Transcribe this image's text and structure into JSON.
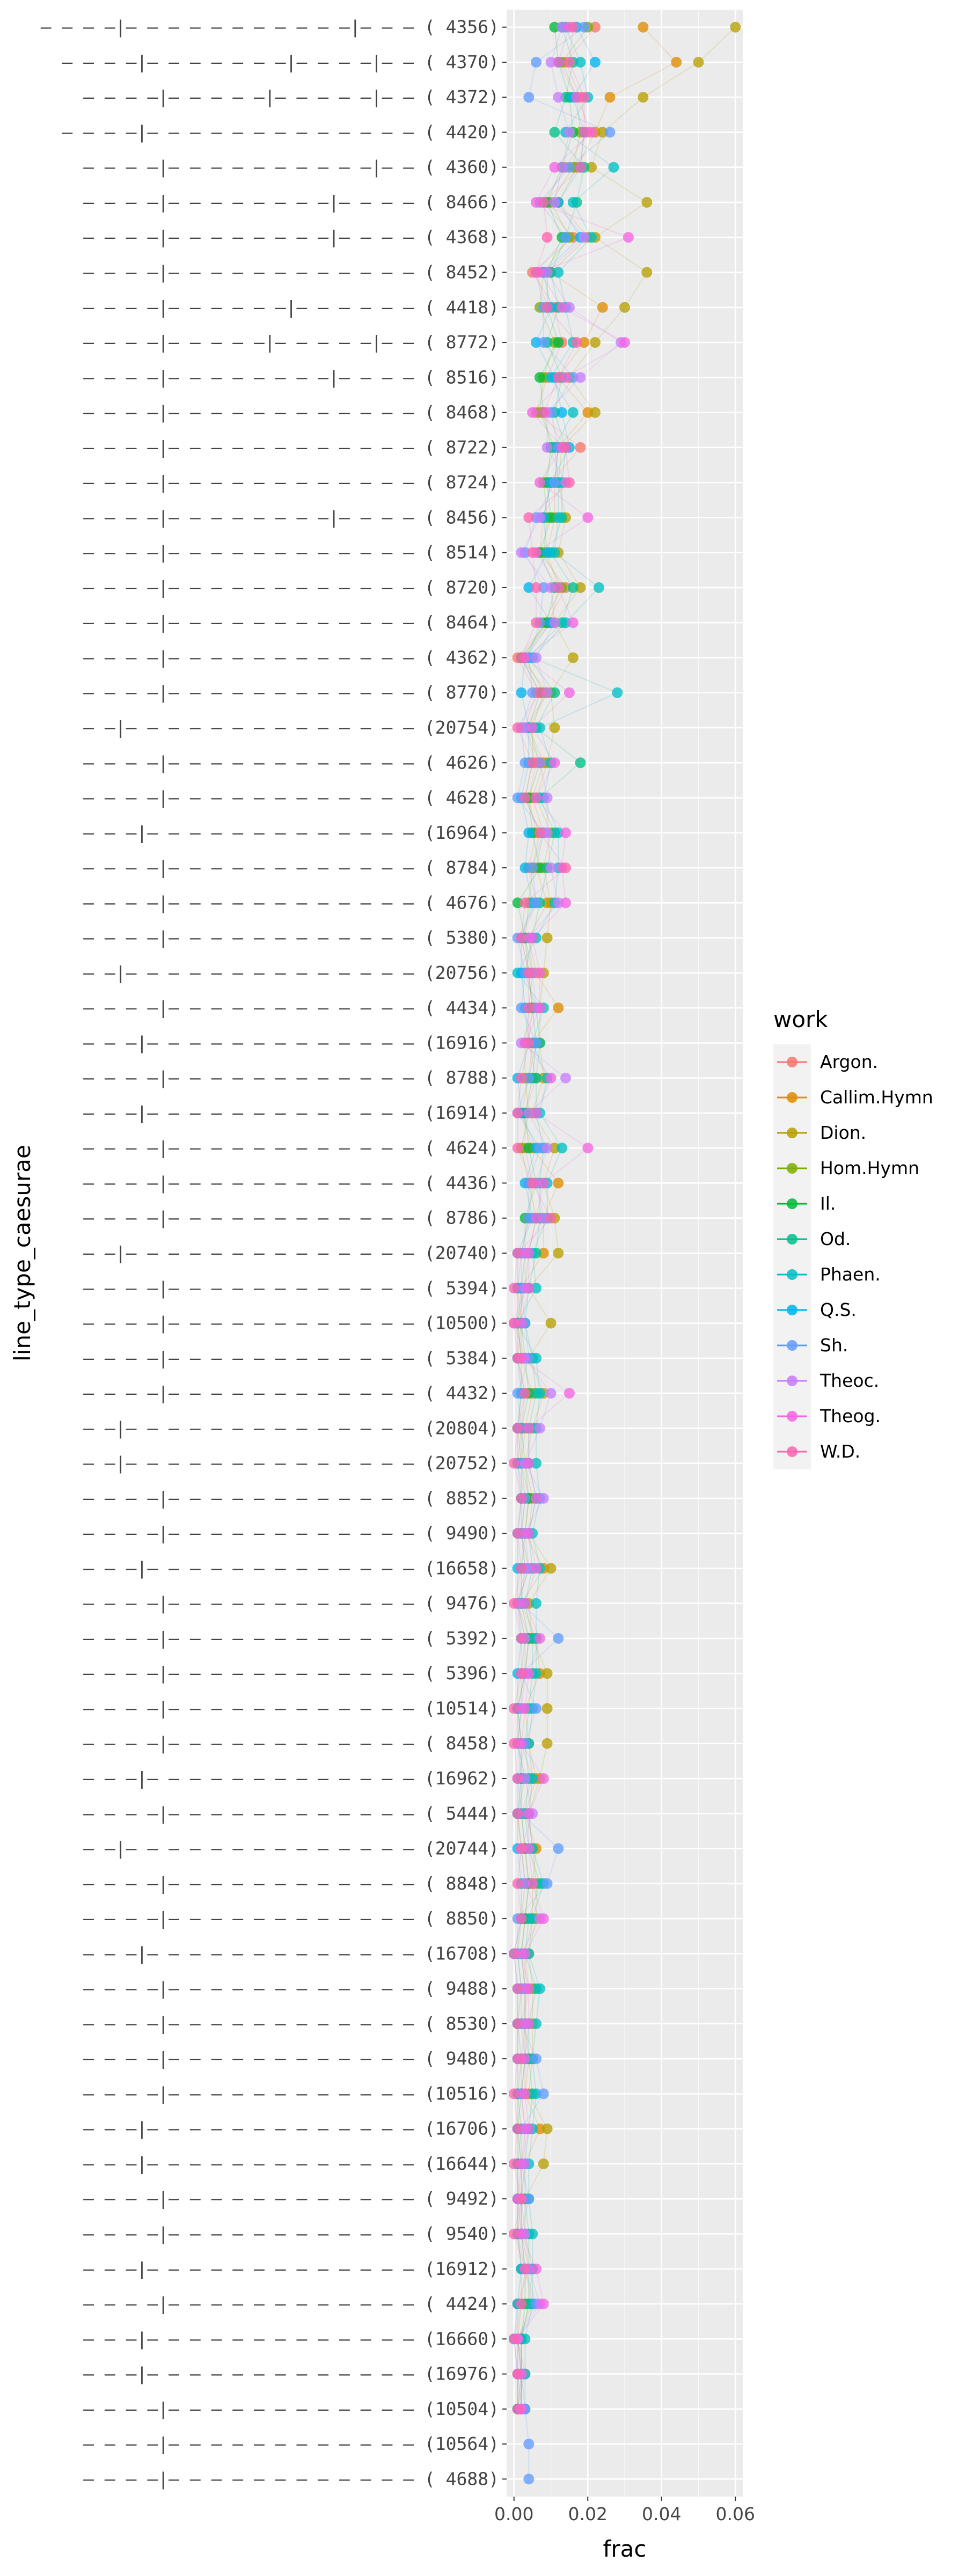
{
  "chart_data": {
    "type": "scatter",
    "xlabel": "frac",
    "ylabel": "line_type_caesurae",
    "xlim": [
      -0.002,
      0.062
    ],
    "xticks": [
      0.0,
      0.02,
      0.04,
      0.06
    ],
    "xtick_labels": [
      "0.00",
      "0.02",
      "0.04",
      "0.06"
    ],
    "grid": true,
    "legend": {
      "title": "work",
      "placement": "right",
      "entries": [
        {
          "name": "Argon.",
          "color": "#F8766D"
        },
        {
          "name": "Callim.Hymn",
          "color": "#DE8C00"
        },
        {
          "name": "Dion.",
          "color": "#B79F00"
        },
        {
          "name": "Hom.Hymn",
          "color": "#7CAE00"
        },
        {
          "name": "Il.",
          "color": "#00BA38"
        },
        {
          "name": "Od.",
          "color": "#00C08B"
        },
        {
          "name": "Phaen.",
          "color": "#00BFC4"
        },
        {
          "name": "Q.S.",
          "color": "#00B4F0"
        },
        {
          "name": "Sh.",
          "color": "#619CFF"
        },
        {
          "name": "Theoc.",
          "color": "#C77CFF"
        },
        {
          "name": "Theog.",
          "color": "#F564E3"
        },
        {
          "name": "W.D.",
          "color": "#FF64B0"
        }
      ]
    },
    "categories": [
      "– – – –|– – – – – – – – – – –|– – – ( 4356)",
      "– – – –|– – – – – – –|– – – –|– – ( 4370)",
      "– – – –|– – – – –|– – – – –|– – ( 4372)",
      "– – – –|– – – – – – – – – – – – – ( 4420)",
      "– – – –|– – – – – – – – – –|– – ( 4360)",
      "– – – –|– – – – – – – –|– – – – ( 8466)",
      "– – – –|– – – – – – – –|– – – – ( 4368)",
      "– – – –|– – – – – – – – – – – – ( 8452)",
      "– – – –|– – – – – –|– – – – – – ( 4418)",
      "– – – –|– – – – –|– – – – –|– – ( 8772)",
      "– – – –|– – – – – – – –|– – – – ( 8516)",
      "– – – –|– – – – – – – – – – – – ( 8468)",
      "– – – –|– – – – – – – – – – – – ( 8722)",
      "– – – –|– – – – – – – – – – – – ( 8724)",
      "– – – –|– – – – – – – –|– – – – ( 8456)",
      "– – – –|– – – – – – – – – – – – ( 8514)",
      "– – – –|– – – – – – – – – – – – ( 8720)",
      "– – – –|– – – – – – – – – – – – ( 8464)",
      "– – – –|– – – – – – – – – – – – ( 4362)",
      "– – – –|– – – – – – – – – – – – ( 8770)",
      "– –|– – – – – – – – – – – – – – (20754)",
      "– – – –|– – – – – – – – – – – – ( 4626)",
      "– – – –|– – – – – – – – – – – – ( 4628)",
      "– – –|– – – – – – – – – – – – – (16964)",
      "– – – –|– – – – – – – – – – – – ( 8784)",
      "– – – –|– – – – – – – – – – – – ( 4676)",
      "– – – –|– – – – – – – – – – – – ( 5380)",
      "– –|– – – – – – – – – – – – – – (20756)",
      "– – – –|– – – – – – – – – – – – ( 4434)",
      "– – –|– – – – – – – – – – – – – (16916)",
      "– – – –|– – – – – – – – – – – – ( 8788)",
      "– – –|– – – – – – – – – – – – – (16914)",
      "– – – –|– – – – – – – – – – – – ( 4624)",
      "– – – –|– – – – – – – – – – – – ( 4436)",
      "– – – –|– – – – – – – – – – – – ( 8786)",
      "– –|– – – – – – – – – – – – – – (20740)",
      "– – – –|– – – – – – – – – – – – ( 5394)",
      "– – – –|– – – – – – – – – – – – (10500)",
      "– – – –|– – – – – – – – – – – – ( 5384)",
      "– – – –|– – – – – – – – – – – – ( 4432)",
      "– –|– – – – – – – – – – – – – – (20804)",
      "– –|– – – – – – – – – – – – – – (20752)",
      "– – – –|– – – – – – – – – – – – ( 8852)",
      "– – – –|– – – – – – – – – – – – ( 9490)",
      "– – –|– – – – – – – – – – – – – (16658)",
      "– – – –|– – – – – – – – – – – – ( 9476)",
      "– – – –|– – – – – – – – – – – – ( 5392)",
      "– – – –|– – – – – – – – – – – – ( 5396)",
      "– – – –|– – – – – – – – – – – – (10514)",
      "– – – –|– – – – – – – – – – – – ( 8458)",
      "– – –|– – – – – – – – – – – – – (16962)",
      "– – – –|– – – – – – – – – – – – ( 5444)",
      "– –|– – – – – – – – – – – – – – (20744)",
      "– – – –|– – – – – – – – – – – – ( 8848)",
      "– – – –|– – – – – – – – – – – – ( 8850)",
      "– – –|– – – – – – – – – – – – – (16708)",
      "– – – –|– – – – – – – – – – – – ( 9488)",
      "– – – –|– – – – – – – – – – – – ( 8530)",
      "– – – –|– – – – – – – – – – – – ( 9480)",
      "– – – –|– – – – – – – – – – – – (10516)",
      "– – –|– – – – – – – – – – – – – (16706)",
      "– – –|– – – – – – – – – – – – – (16644)",
      "– – – –|– – – – – – – – – – – – ( 9492)",
      "– – – –|– – – – – – – – – – – – ( 9540)",
      "– – –|– – – – – – – – – – – – – (16912)",
      "– – – –|– – – – – – – – – – – – ( 4424)",
      "– – –|– – – – – – – – – – – – – (16660)",
      "– – –|– – – – – – – – – – – – – (16976)",
      "– – – –|– – – – – – – – – – – – (10504)",
      "– – – –|– – – – – – – – – – – – (10564)",
      "– – – –|– – – – – – – – – – – – ( 4688)"
    ],
    "values": [
      [
        0.022,
        0.035,
        0.06,
        0.02,
        0.011,
        0.013,
        0.014,
        0.017,
        0.019,
        0.013,
        0.015,
        0.016
      ],
      [
        0.014,
        0.044,
        0.05,
        0.013,
        0.012,
        0.016,
        0.018,
        0.022,
        0.006,
        0.01,
        0.012,
        0.015
      ],
      [
        0.018,
        0.026,
        0.035,
        0.017,
        0.015,
        0.014,
        0.02,
        0.016,
        0.004,
        0.012,
        0.017,
        0.019
      ],
      [
        0.02,
        0.022,
        0.024,
        0.018,
        0.016,
        0.011,
        0.014,
        0.019,
        0.026,
        0.015,
        0.021,
        0.019
      ],
      [
        0.014,
        0.017,
        0.021,
        0.016,
        0.013,
        0.019,
        0.027,
        0.018,
        0.015,
        0.013,
        0.011,
        0.018
      ],
      [
        0.008,
        0.012,
        0.036,
        0.01,
        0.009,
        0.017,
        0.016,
        0.012,
        0.007,
        0.011,
        0.006,
        0.008
      ],
      [
        0.016,
        0.02,
        0.022,
        0.015,
        0.013,
        0.014,
        0.021,
        0.018,
        0.014,
        0.019,
        0.031,
        0.009
      ],
      [
        0.005,
        0.01,
        0.036,
        0.008,
        0.009,
        0.01,
        0.012,
        0.008,
        0.006,
        0.009,
        0.007,
        0.006
      ],
      [
        0.011,
        0.024,
        0.03,
        0.007,
        0.009,
        0.012,
        0.014,
        0.01,
        0.008,
        0.015,
        0.013,
        0.009
      ],
      [
        0.013,
        0.019,
        0.022,
        0.011,
        0.012,
        0.009,
        0.016,
        0.006,
        0.008,
        0.029,
        0.03,
        0.017
      ],
      [
        0.009,
        0.012,
        0.015,
        0.008,
        0.007,
        0.013,
        0.01,
        0.011,
        0.016,
        0.018,
        0.014,
        0.012
      ],
      [
        0.006,
        0.02,
        0.022,
        0.007,
        0.008,
        0.011,
        0.016,
        0.013,
        0.01,
        0.009,
        0.005,
        0.008
      ],
      [
        0.018,
        0.012,
        0.013,
        0.011,
        0.01,
        0.014,
        0.011,
        0.015,
        0.012,
        0.009,
        0.013,
        0.014
      ],
      [
        0.01,
        0.011,
        0.012,
        0.008,
        0.009,
        0.013,
        0.012,
        0.01,
        0.011,
        0.014,
        0.007,
        0.015
      ],
      [
        0.008,
        0.011,
        0.014,
        0.009,
        0.01,
        0.013,
        0.012,
        0.008,
        0.006,
        0.007,
        0.02,
        0.004
      ],
      [
        0.007,
        0.009,
        0.012,
        0.008,
        0.007,
        0.01,
        0.011,
        0.009,
        0.003,
        0.002,
        0.006,
        0.005
      ],
      [
        0.014,
        0.012,
        0.018,
        0.013,
        0.011,
        0.016,
        0.023,
        0.004,
        0.008,
        0.01,
        0.012,
        0.006
      ],
      [
        0.009,
        0.01,
        0.011,
        0.008,
        0.009,
        0.013,
        0.014,
        0.01,
        0.007,
        0.011,
        0.016,
        0.006
      ],
      [
        0.001,
        0.002,
        0.016,
        0.003,
        0.002,
        0.004,
        0.005,
        0.003,
        0.004,
        0.006,
        0.003,
        0.002
      ],
      [
        0.006,
        0.009,
        0.01,
        0.008,
        0.007,
        0.011,
        0.028,
        0.002,
        0.005,
        0.009,
        0.015,
        0.007
      ],
      [
        0.003,
        0.004,
        0.011,
        0.005,
        0.004,
        0.006,
        0.007,
        0.004,
        0.002,
        0.003,
        0.005,
        0.001
      ],
      [
        0.006,
        0.008,
        0.009,
        0.005,
        0.007,
        0.018,
        0.01,
        0.004,
        0.003,
        0.007,
        0.011,
        0.005
      ],
      [
        0.004,
        0.005,
        0.006,
        0.003,
        0.004,
        0.007,
        0.008,
        0.002,
        0.001,
        0.009,
        0.006,
        0.003
      ],
      [
        0.006,
        0.008,
        0.01,
        0.007,
        0.005,
        0.011,
        0.012,
        0.004,
        0.008,
        0.009,
        0.014,
        0.007
      ],
      [
        0.004,
        0.006,
        0.008,
        0.005,
        0.007,
        0.009,
        0.012,
        0.003,
        0.005,
        0.01,
        0.013,
        0.014
      ],
      [
        0.006,
        0.009,
        0.01,
        0.004,
        0.001,
        0.007,
        0.011,
        0.005,
        0.006,
        0.012,
        0.014,
        0.003
      ],
      [
        0.002,
        0.004,
        0.009,
        0.003,
        0.003,
        0.005,
        0.006,
        0.002,
        0.001,
        0.004,
        0.005,
        0.002
      ],
      [
        0.004,
        0.006,
        0.008,
        0.005,
        0.004,
        0.003,
        0.001,
        0.002,
        0.003,
        0.005,
        0.007,
        0.004
      ],
      [
        0.005,
        0.012,
        0.007,
        0.004,
        0.005,
        0.006,
        0.008,
        0.003,
        0.002,
        0.006,
        0.007,
        0.004
      ],
      [
        0.004,
        0.005,
        0.007,
        0.003,
        0.006,
        0.007,
        0.005,
        0.004,
        0.006,
        0.002,
        0.003,
        0.004
      ],
      [
        0.006,
        0.004,
        0.008,
        0.003,
        0.005,
        0.006,
        0.009,
        0.001,
        0.004,
        0.014,
        0.01,
        0.002
      ],
      [
        0.003,
        0.002,
        0.005,
        0.004,
        0.003,
        0.006,
        0.007,
        0.002,
        0.001,
        0.004,
        0.006,
        0.001
      ],
      [
        0.003,
        0.005,
        0.011,
        0.002,
        0.004,
        0.008,
        0.013,
        0.006,
        0.007,
        0.009,
        0.02,
        0.001
      ],
      [
        0.005,
        0.012,
        0.008,
        0.004,
        0.006,
        0.007,
        0.009,
        0.003,
        0.004,
        0.006,
        0.008,
        0.005
      ],
      [
        0.004,
        0.008,
        0.011,
        0.006,
        0.003,
        0.007,
        0.009,
        0.005,
        0.004,
        0.008,
        0.006,
        0.01
      ],
      [
        0.002,
        0.008,
        0.012,
        0.004,
        0.003,
        0.006,
        0.005,
        0.001,
        0.002,
        0.003,
        0.004,
        0.001
      ],
      [
        0.001,
        0.002,
        0.004,
        0.003,
        0.002,
        0.004,
        0.006,
        0.001,
        0.002,
        0.003,
        0.004,
        0.0
      ],
      [
        0.002,
        0.001,
        0.01,
        0.001,
        0.002,
        0.003,
        0.001,
        0.001,
        0.003,
        0.0,
        0.002,
        0.0
      ],
      [
        0.001,
        0.002,
        0.004,
        0.002,
        0.003,
        0.005,
        0.006,
        0.001,
        0.004,
        0.003,
        0.002,
        0.001
      ],
      [
        0.003,
        0.005,
        0.008,
        0.002,
        0.004,
        0.006,
        0.007,
        0.002,
        0.001,
        0.01,
        0.015,
        0.003
      ],
      [
        0.002,
        0.003,
        0.005,
        0.001,
        0.002,
        0.004,
        0.006,
        0.001,
        0.002,
        0.007,
        0.004,
        0.001
      ],
      [
        0.001,
        0.002,
        0.003,
        0.002,
        0.003,
        0.004,
        0.006,
        0.001,
        0.002,
        0.003,
        0.004,
        0.0
      ],
      [
        0.003,
        0.004,
        0.005,
        0.002,
        0.004,
        0.006,
        0.007,
        0.002,
        0.003,
        0.008,
        0.006,
        0.002
      ],
      [
        0.002,
        0.003,
        0.004,
        0.002,
        0.003,
        0.004,
        0.005,
        0.001,
        0.002,
        0.003,
        0.004,
        0.001
      ],
      [
        0.003,
        0.008,
        0.01,
        0.004,
        0.002,
        0.005,
        0.007,
        0.001,
        0.003,
        0.004,
        0.006,
        0.002
      ],
      [
        0.001,
        0.002,
        0.004,
        0.001,
        0.002,
        0.003,
        0.006,
        0.001,
        0.002,
        0.001,
        0.003,
        0.0
      ],
      [
        0.004,
        0.006,
        0.005,
        0.003,
        0.004,
        0.005,
        0.006,
        0.002,
        0.012,
        0.003,
        0.007,
        0.002
      ],
      [
        0.003,
        0.007,
        0.009,
        0.002,
        0.003,
        0.005,
        0.006,
        0.001,
        0.002,
        0.003,
        0.004,
        0.002
      ],
      [
        0.001,
        0.003,
        0.009,
        0.002,
        0.001,
        0.004,
        0.005,
        0.001,
        0.006,
        0.002,
        0.003,
        0.0
      ],
      [
        0.002,
        0.004,
        0.009,
        0.001,
        0.002,
        0.003,
        0.004,
        0.001,
        0.003,
        0.001,
        0.002,
        0.0
      ],
      [
        0.005,
        0.006,
        0.007,
        0.003,
        0.002,
        0.004,
        0.005,
        0.002,
        0.001,
        0.003,
        0.008,
        0.001
      ],
      [
        0.002,
        0.003,
        0.004,
        0.001,
        0.002,
        0.003,
        0.004,
        0.001,
        0.002,
        0.005,
        0.004,
        0.001
      ],
      [
        0.003,
        0.006,
        0.005,
        0.002,
        0.003,
        0.004,
        0.005,
        0.001,
        0.012,
        0.002,
        0.004,
        0.002
      ],
      [
        0.004,
        0.005,
        0.006,
        0.003,
        0.004,
        0.007,
        0.008,
        0.002,
        0.009,
        0.003,
        0.005,
        0.001
      ],
      [
        0.003,
        0.005,
        0.006,
        0.002,
        0.003,
        0.004,
        0.005,
        0.002,
        0.001,
        0.007,
        0.008,
        0.002
      ],
      [
        0.002,
        0.003,
        0.004,
        0.001,
        0.002,
        0.003,
        0.004,
        0.0,
        0.001,
        0.002,
        0.003,
        0.0
      ],
      [
        0.004,
        0.003,
        0.005,
        0.002,
        0.003,
        0.006,
        0.007,
        0.001,
        0.002,
        0.003,
        0.004,
        0.001
      ],
      [
        0.002,
        0.003,
        0.005,
        0.001,
        0.003,
        0.004,
        0.006,
        0.001,
        0.002,
        0.003,
        0.004,
        0.001
      ],
      [
        0.003,
        0.004,
        0.005,
        0.002,
        0.003,
        0.004,
        0.005,
        0.001,
        0.006,
        0.002,
        0.003,
        0.001
      ],
      [
        0.002,
        0.003,
        0.004,
        0.001,
        0.002,
        0.005,
        0.006,
        0.001,
        0.008,
        0.002,
        0.003,
        0.0
      ],
      [
        0.003,
        0.007,
        0.009,
        0.002,
        0.001,
        0.004,
        0.005,
        0.001,
        0.002,
        0.003,
        0.004,
        0.001
      ],
      [
        0.002,
        0.003,
        0.008,
        0.001,
        0.002,
        0.003,
        0.004,
        0.001,
        0.002,
        0.003,
        0.002,
        0.0
      ],
      [
        0.002,
        0.002,
        0.003,
        0.001,
        0.002,
        0.003,
        0.004,
        0.001,
        0.004,
        0.002,
        0.001,
        0.002
      ],
      [
        0.001,
        0.002,
        0.003,
        0.001,
        0.002,
        0.004,
        0.005,
        0.001,
        0.002,
        0.003,
        0.002,
        0.0
      ],
      [
        0.003,
        0.004,
        0.005,
        0.002,
        0.003,
        0.004,
        0.005,
        0.002,
        0.003,
        0.004,
        0.006,
        0.003
      ],
      [
        0.005,
        0.001,
        0.004,
        0.002,
        0.003,
        0.004,
        0.005,
        0.001,
        0.006,
        0.007,
        0.008,
        0.002
      ],
      [
        0.001,
        0.001,
        0.002,
        0.001,
        0.002,
        0.002,
        0.003,
        0.0,
        0.001,
        0.001,
        0.001,
        0.0
      ],
      [
        0.003,
        0.002,
        0.002,
        0.001,
        0.002,
        0.002,
        0.003,
        0.001,
        0.002,
        0.001,
        0.002,
        0.001
      ],
      [
        0.001,
        0.002,
        0.002,
        0.001,
        0.001,
        0.002,
        0.003,
        0.001,
        0.003,
        0.002,
        0.002,
        0.001
      ],
      [
        null,
        null,
        null,
        null,
        null,
        null,
        null,
        null,
        0.004,
        null,
        null,
        null
      ],
      [
        null,
        null,
        null,
        null,
        null,
        null,
        null,
        null,
        0.004,
        null,
        null,
        null
      ]
    ]
  }
}
